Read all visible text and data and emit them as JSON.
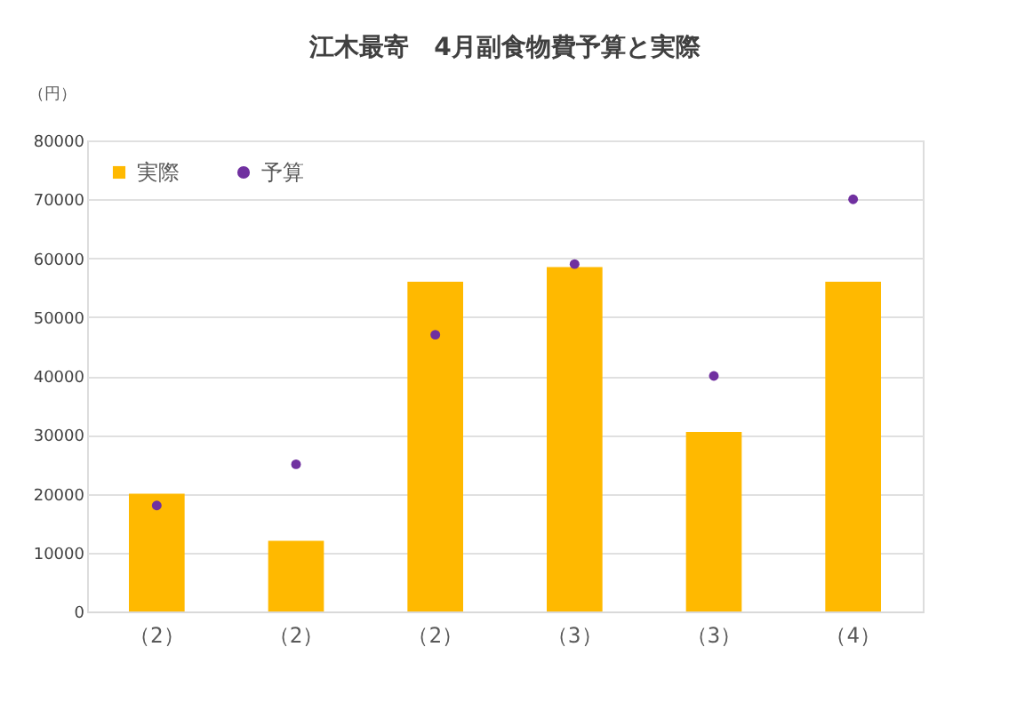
{
  "chart_data": {
    "type": "bar",
    "title": "江木最寄　4月副食物費予算と実際",
    "ylabel": "（円）",
    "categories": [
      "（2）",
      "（2）",
      "（2）",
      "（3）",
      "（3）",
      "（4）"
    ],
    "series": [
      {
        "name": "実際",
        "color": "#ffb900",
        "values": [
          20000,
          12000,
          56000,
          58500,
          30500,
          56000
        ]
      },
      {
        "name": "予算",
        "type": "scatter",
        "color": "#7030a0",
        "values": [
          18000,
          25000,
          47000,
          59000,
          40000,
          70000
        ]
      }
    ],
    "ylim": [
      0,
      80000
    ],
    "yticks": [
      0,
      10000,
      20000,
      30000,
      40000,
      50000,
      60000,
      70000,
      80000
    ],
    "grid": "y",
    "legend": "top left",
    "marker": "circle"
  }
}
